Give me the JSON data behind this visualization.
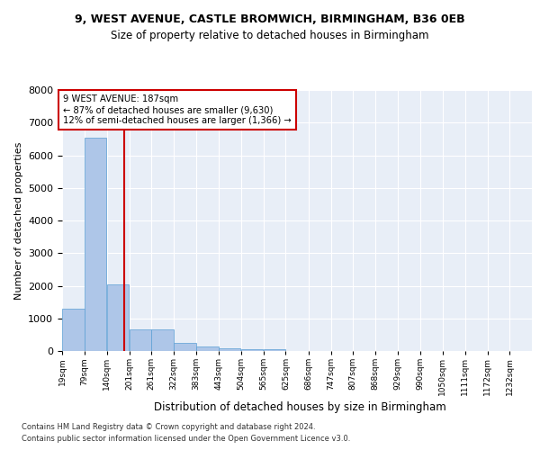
{
  "title": "9, WEST AVENUE, CASTLE BROMWICH, BIRMINGHAM, B36 0EB",
  "subtitle": "Size of property relative to detached houses in Birmingham",
  "xlabel": "Distribution of detached houses by size in Birmingham",
  "ylabel": "Number of detached properties",
  "bar_color": "#aec6e8",
  "bar_edge_color": "#5a9fd4",
  "background_color": "#e8eef7",
  "grid_color": "#ffffff",
  "vline_x_bin_index": 2,
  "vline_color": "#cc0000",
  "annotation_line1": "9 WEST AVENUE: 187sqm",
  "annotation_line2": "← 87% of detached houses are smaller (9,630)",
  "annotation_line3": "12% of semi-detached houses are larger (1,366) →",
  "annotation_box_color": "#cc0000",
  "footnote1": "Contains HM Land Registry data © Crown copyright and database right 2024.",
  "footnote2": "Contains public sector information licensed under the Open Government Licence v3.0.",
  "bins": [
    19,
    79,
    140,
    201,
    261,
    322,
    383,
    443,
    504,
    565,
    625,
    686,
    747,
    807,
    868,
    929,
    990,
    1050,
    1111,
    1172,
    1232
  ],
  "counts": [
    1310,
    6550,
    2050,
    650,
    650,
    250,
    130,
    90,
    60,
    60,
    0,
    0,
    0,
    0,
    0,
    0,
    0,
    0,
    0,
    0
  ],
  "ylim": [
    0,
    8000
  ],
  "yticks": [
    0,
    1000,
    2000,
    3000,
    4000,
    5000,
    6000,
    7000,
    8000
  ],
  "vline_x": 187
}
